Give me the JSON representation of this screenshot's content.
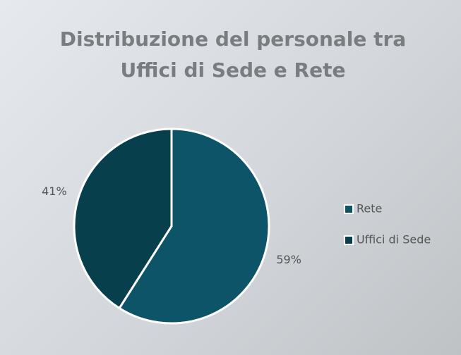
{
  "chart_data": {
    "type": "pie",
    "title": "Distribuzione del personale tra Uffici di Sede e Rete",
    "categories": [
      "Rete",
      "Uffici di Sede"
    ],
    "values": [
      59,
      41
    ],
    "value_labels": [
      "59%",
      "41%"
    ],
    "colors": [
      "#0d5468",
      "#073f4d"
    ],
    "legend": "right"
  }
}
